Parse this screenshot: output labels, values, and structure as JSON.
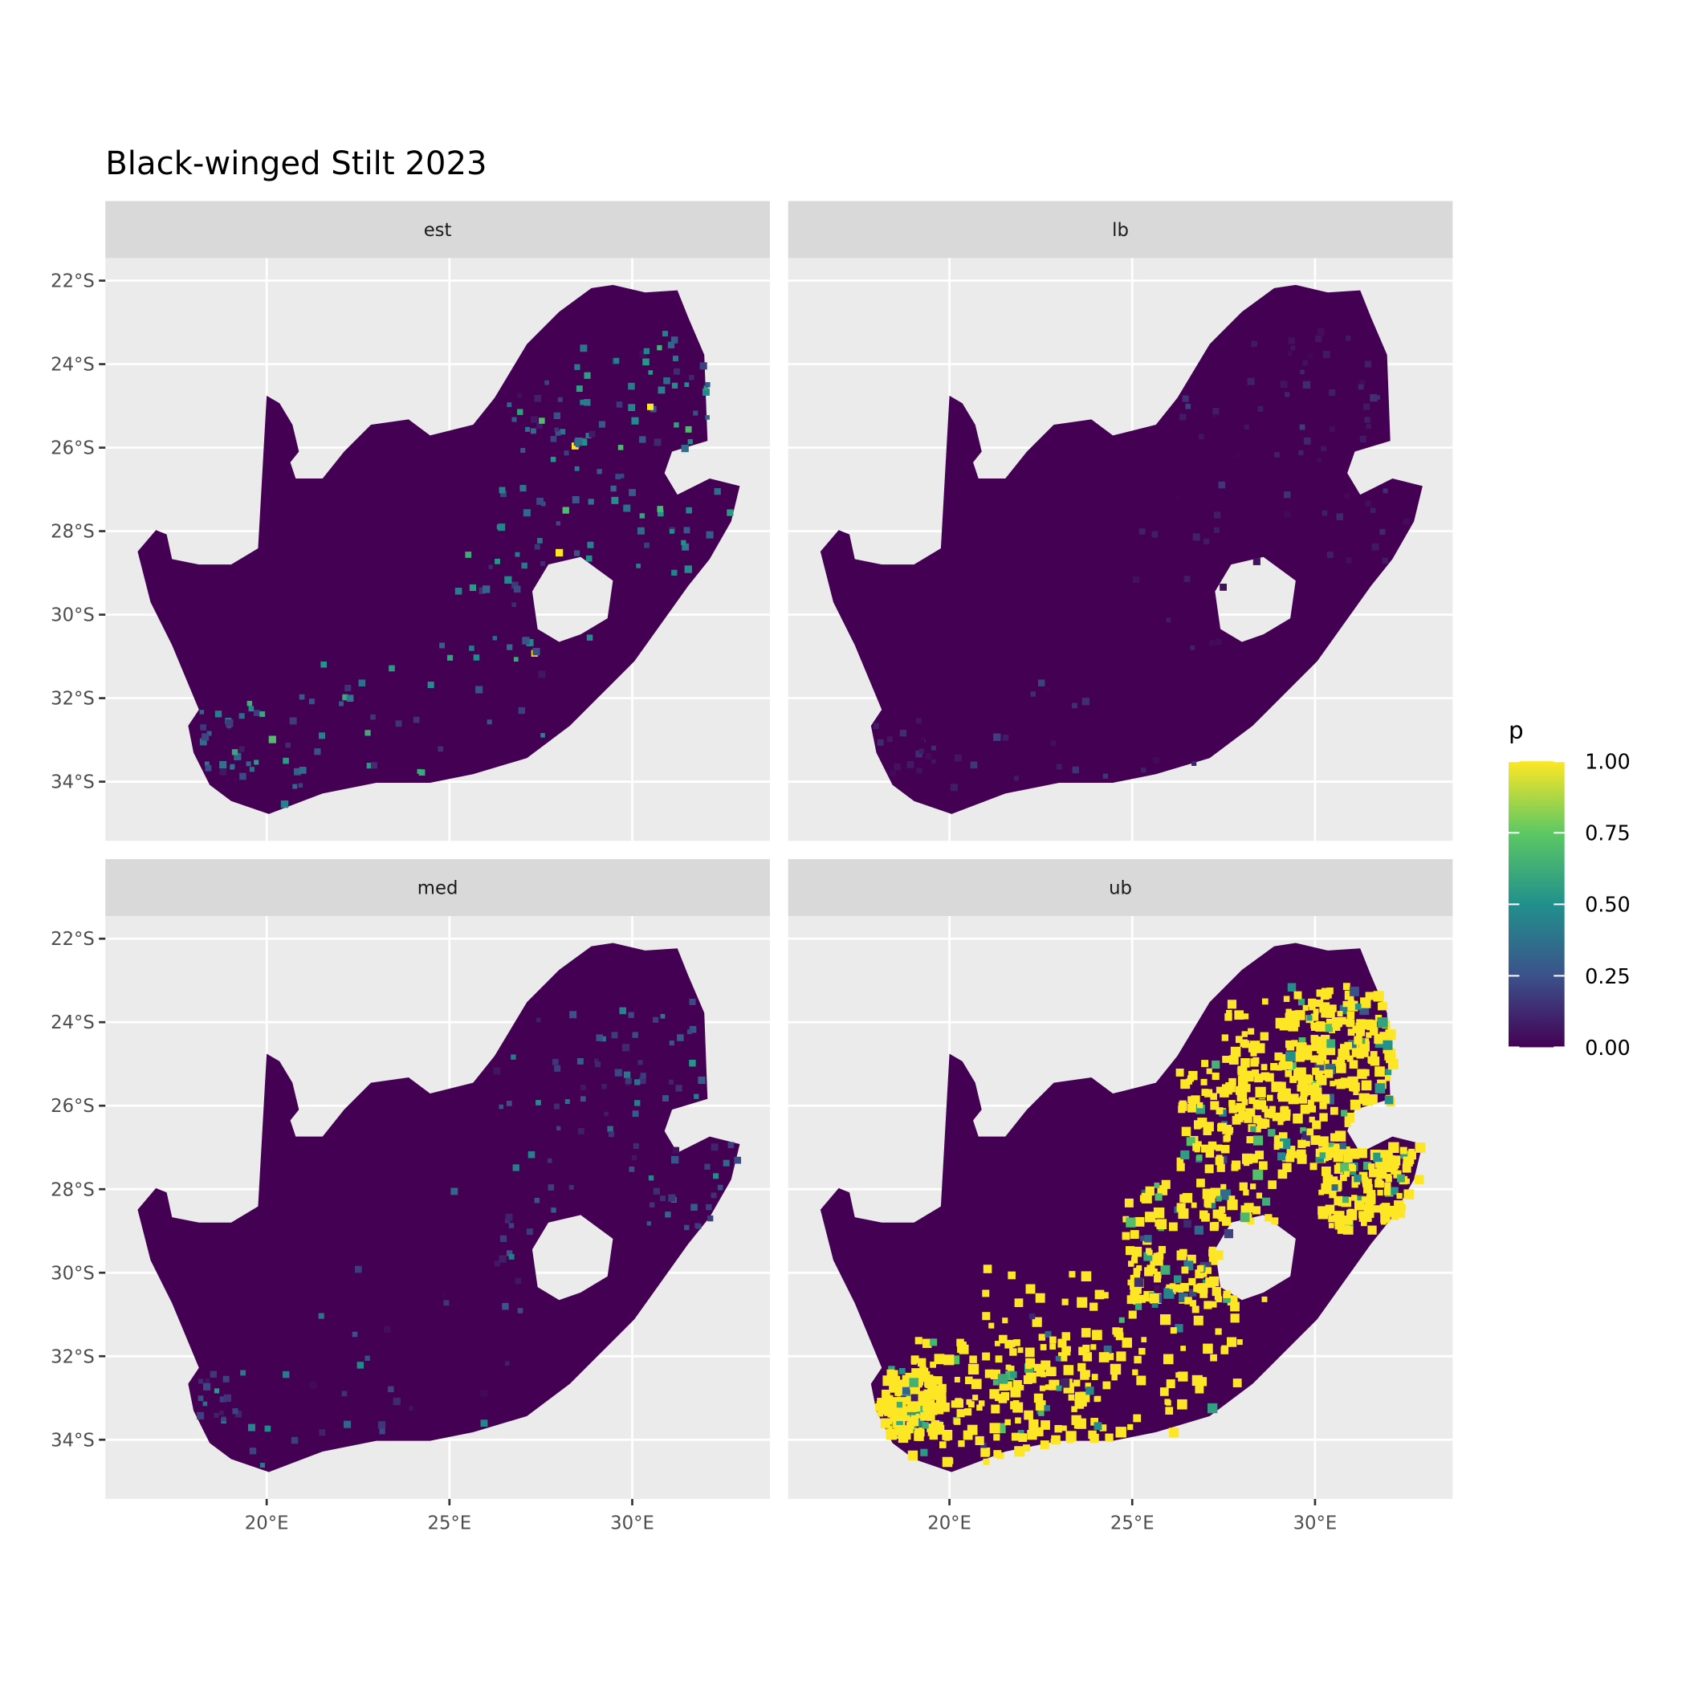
{
  "chart_data": {
    "type": "heatmap",
    "title": "Black-winged Stilt 2023",
    "facets": [
      "est",
      "lb",
      "med",
      "ub"
    ],
    "x_ticks": [
      "20°E",
      "25°E",
      "30°E"
    ],
    "x_tick_values": [
      20,
      25,
      30
    ],
    "y_ticks": [
      "22°S",
      "24°S",
      "26°S",
      "28°S",
      "30°S",
      "32°S",
      "34°S"
    ],
    "y_tick_values": [
      -22,
      -24,
      -26,
      -28,
      -30,
      -32,
      -34
    ],
    "legend": {
      "title": "p",
      "labels": [
        "1.00",
        "0.75",
        "0.50",
        "0.25",
        "0.00"
      ],
      "values": [
        1.0,
        0.75,
        0.5,
        0.25,
        0.0
      ],
      "range": [
        0,
        1
      ],
      "palette": [
        "#440154",
        "#3b528b",
        "#21908c",
        "#5dc863",
        "#fde725"
      ],
      "placement": "right"
    },
    "colors": {
      "panel_background": "#ebebeb",
      "strip_background": "#d9d9d9",
      "grid": "#ffffff",
      "land_low": "#440154"
    },
    "grid": true
  }
}
